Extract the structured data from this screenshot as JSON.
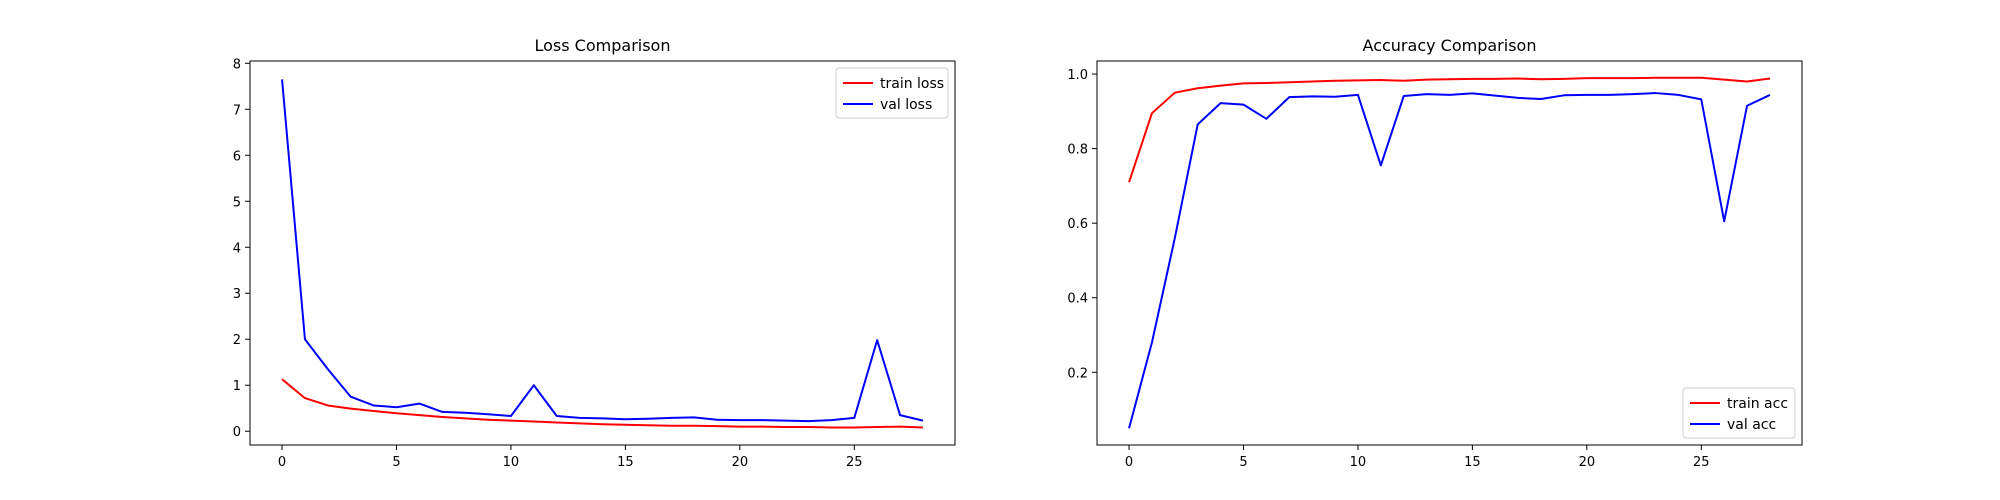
{
  "chart_data": [
    {
      "type": "line",
      "title": "Loss Comparison",
      "xlabel": "",
      "ylabel": "",
      "xlim": [
        -1.4,
        29.4
      ],
      "ylim": [
        -0.3,
        8.05
      ],
      "xticks": [
        0,
        5,
        10,
        15,
        20,
        25
      ],
      "yticks": [
        0,
        1,
        2,
        3,
        4,
        5,
        6,
        7,
        8
      ],
      "grid": false,
      "legend_position": "top-right",
      "x": [
        0,
        1,
        2,
        3,
        4,
        5,
        6,
        7,
        8,
        9,
        10,
        11,
        12,
        13,
        14,
        15,
        16,
        17,
        18,
        19,
        20,
        21,
        22,
        23,
        24,
        25,
        26,
        27,
        28
      ],
      "series": [
        {
          "name": "train loss",
          "color": "#ff0000",
          "values": [
            1.13,
            0.72,
            0.56,
            0.49,
            0.44,
            0.39,
            0.35,
            0.31,
            0.28,
            0.25,
            0.23,
            0.21,
            0.19,
            0.17,
            0.15,
            0.14,
            0.13,
            0.12,
            0.12,
            0.11,
            0.1,
            0.1,
            0.09,
            0.09,
            0.08,
            0.08,
            0.09,
            0.1,
            0.08
          ]
        },
        {
          "name": "val loss",
          "color": "#0000ff",
          "values": [
            7.65,
            2.0,
            1.35,
            0.75,
            0.56,
            0.52,
            0.6,
            0.42,
            0.4,
            0.37,
            0.33,
            1.0,
            0.33,
            0.29,
            0.28,
            0.26,
            0.27,
            0.29,
            0.3,
            0.25,
            0.24,
            0.24,
            0.23,
            0.22,
            0.24,
            0.29,
            1.98,
            0.35,
            0.23
          ]
        }
      ]
    },
    {
      "type": "line",
      "title": "Accuracy Comparison",
      "xlabel": "",
      "ylabel": "",
      "xlim": [
        -1.4,
        29.4
      ],
      "ylim": [
        0.005,
        1.035
      ],
      "xticks": [
        0,
        5,
        10,
        15,
        20,
        25
      ],
      "yticks": [
        0.2,
        0.4,
        0.6,
        0.8,
        1.0
      ],
      "ytick_labels": [
        "0.2",
        "0.4",
        "0.6",
        "0.8",
        "1.0"
      ],
      "grid": false,
      "legend_position": "bottom-right",
      "x": [
        0,
        1,
        2,
        3,
        4,
        5,
        6,
        7,
        8,
        9,
        10,
        11,
        12,
        13,
        14,
        15,
        16,
        17,
        18,
        19,
        20,
        21,
        22,
        23,
        24,
        25,
        26,
        27,
        28
      ],
      "series": [
        {
          "name": "train acc",
          "color": "#ff0000",
          "values": [
            0.71,
            0.895,
            0.95,
            0.962,
            0.969,
            0.975,
            0.976,
            0.978,
            0.98,
            0.982,
            0.983,
            0.984,
            0.982,
            0.985,
            0.986,
            0.987,
            0.987,
            0.988,
            0.986,
            0.987,
            0.989,
            0.989,
            0.989,
            0.99,
            0.99,
            0.99,
            0.985,
            0.98,
            0.988
          ]
        },
        {
          "name": "val acc",
          "color": "#0000ff",
          "values": [
            0.05,
            0.28,
            0.56,
            0.865,
            0.922,
            0.918,
            0.88,
            0.938,
            0.94,
            0.939,
            0.944,
            0.755,
            0.941,
            0.946,
            0.944,
            0.948,
            0.942,
            0.936,
            0.933,
            0.943,
            0.944,
            0.944,
            0.946,
            0.949,
            0.944,
            0.932,
            0.605,
            0.915,
            0.944
          ]
        }
      ]
    }
  ]
}
